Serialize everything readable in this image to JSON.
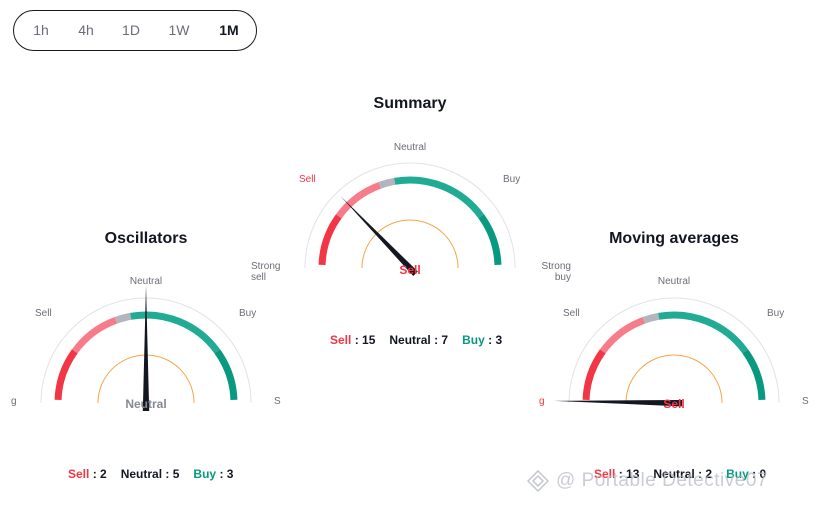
{
  "timeframes": [
    {
      "label": "1h",
      "active": false
    },
    {
      "label": "4h",
      "active": false
    },
    {
      "label": "1D",
      "active": false
    },
    {
      "label": "1W",
      "active": false
    },
    {
      "label": "1M",
      "active": true
    }
  ],
  "summary": {
    "title": "Summary",
    "labels": {
      "neutral": "Neutral",
      "sell": "Sell",
      "buy": "Buy",
      "strong_sell": "Strong sell",
      "strong_buy": "Strong buy"
    },
    "verdict": "Sell",
    "counts": {
      "sell_label": "Sell",
      "sell": ": 15",
      "neutral_label": "Neutral",
      "neutral": ": 7",
      "buy_label": "Buy",
      "buy": ": 3"
    }
  },
  "oscillators": {
    "title": "Oscillators",
    "labels": {
      "neutral": "Neutral",
      "sell": "Sell",
      "buy": "Buy",
      "strong_sell_cut": "g",
      "strong_buy_cut": "S"
    },
    "verdict": "Neutral",
    "counts": {
      "sell_label": "Sell",
      "sell": ": 2",
      "neutral_label": "Neutral",
      "neutral": ": 5",
      "buy_label": "Buy",
      "buy": ": 3"
    }
  },
  "moving_averages": {
    "title": "Moving averages",
    "labels": {
      "neutral": "Neutral",
      "sell": "Sell",
      "buy": "Buy",
      "strong_sell_cut": "g",
      "strong_buy_cut": "S"
    },
    "verdict": "Sell",
    "counts": {
      "sell_label": "Sell",
      "sell": ": 13",
      "neutral_label": "Neutral",
      "neutral": ": 2",
      "buy_label": "Buy",
      "buy": ": 0"
    }
  },
  "watermark": "@ Portable Detective07",
  "colors": {
    "strong_sell": "#f23645",
    "sell": "#f7525f",
    "sell_light": "#f77c8a",
    "neutral": "#b2b5be",
    "buy": "#22ab94",
    "strong_buy": "#089981",
    "inner_arc": "#f7a54a",
    "outer_arc": "#e0e3eb",
    "needle": "#131722",
    "verdict_sell": "#f23645",
    "verdict_neutral": "#868993"
  }
}
